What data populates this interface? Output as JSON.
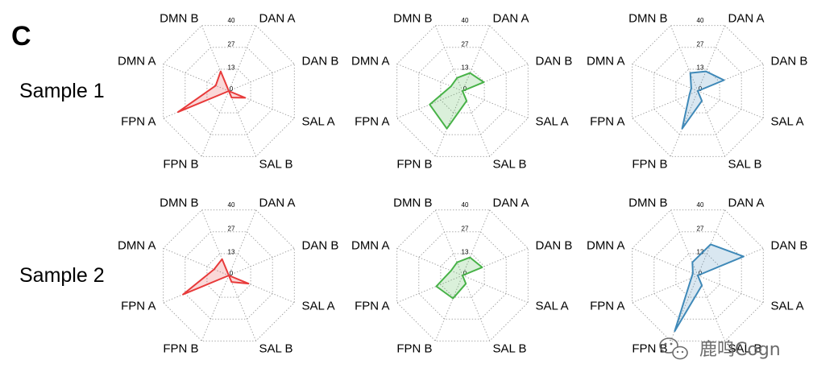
{
  "panel_letter": "C",
  "watermark": {
    "text": "鹿鸣Cogn",
    "icon": "wechat-icon"
  },
  "colors": {
    "red": "#e83a3a",
    "green": "#47b247",
    "blue": "#3f89b8",
    "grid": "#9a9a9a"
  },
  "chart_data": {
    "type": "radar",
    "axes": [
      "DAN A",
      "DAN B",
      "SAL A",
      "SAL B",
      "FPN B",
      "FPN A",
      "DMN A",
      "DMN B"
    ],
    "ticks": [
      "0",
      "13",
      "27",
      "40"
    ],
    "range": [
      0,
      40
    ],
    "grid": true,
    "rows": [
      {
        "label": "Sample 1",
        "charts": [
          {
            "color": "red",
            "values": [
              0,
              0,
              10,
              4,
              0,
              31,
              8,
              12
            ]
          },
          {
            "color": "green",
            "values": [
              11,
              13,
              0,
              6,
              23,
              20,
              7,
              8
            ]
          },
          {
            "color": "blue",
            "values": [
              12,
              16,
              0,
              6,
              23,
              5,
              4,
              11
            ]
          }
        ]
      },
      {
        "label": "Sample 2",
        "charts": [
          {
            "color": "red",
            "values": [
              0,
              0,
              12,
              4,
              0,
              28,
              9,
              10
            ]
          },
          {
            "color": "green",
            "values": [
              11,
              12,
              0,
              5,
              14,
              16,
              7,
              8
            ]
          },
          {
            "color": "blue",
            "values": [
              19,
              28,
              0,
              6,
              34,
              4,
              3,
              8
            ]
          }
        ]
      }
    ]
  }
}
